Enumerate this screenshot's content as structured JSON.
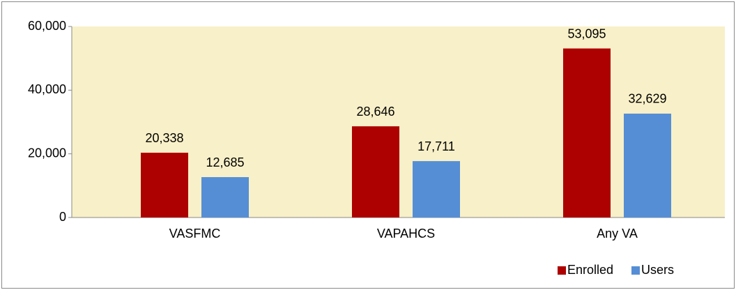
{
  "chart_data": {
    "type": "bar",
    "categories": [
      "VASFMC",
      "VAPAHCS",
      "Any VA"
    ],
    "series": [
      {
        "name": "Enrolled",
        "color": "#ad0000",
        "values": [
          20338,
          28646,
          53095
        ],
        "value_labels": [
          "20,338",
          "28,646",
          "53,095"
        ]
      },
      {
        "name": "Users",
        "color": "#558ed5",
        "values": [
          12685,
          17711,
          32629
        ],
        "value_labels": [
          "12,685",
          "17,711",
          "32,629"
        ]
      }
    ],
    "ylim": [
      0,
      60000
    ],
    "yticks": [
      0,
      {
        "value": 20000,
        "label": "20,000"
      },
      {
        "value": 40000,
        "label": "40,000"
      },
      {
        "value": 60000,
        "label": "60,000"
      }
    ],
    "plot_background": "#f8f0c8",
    "legend": "bottom-right"
  }
}
